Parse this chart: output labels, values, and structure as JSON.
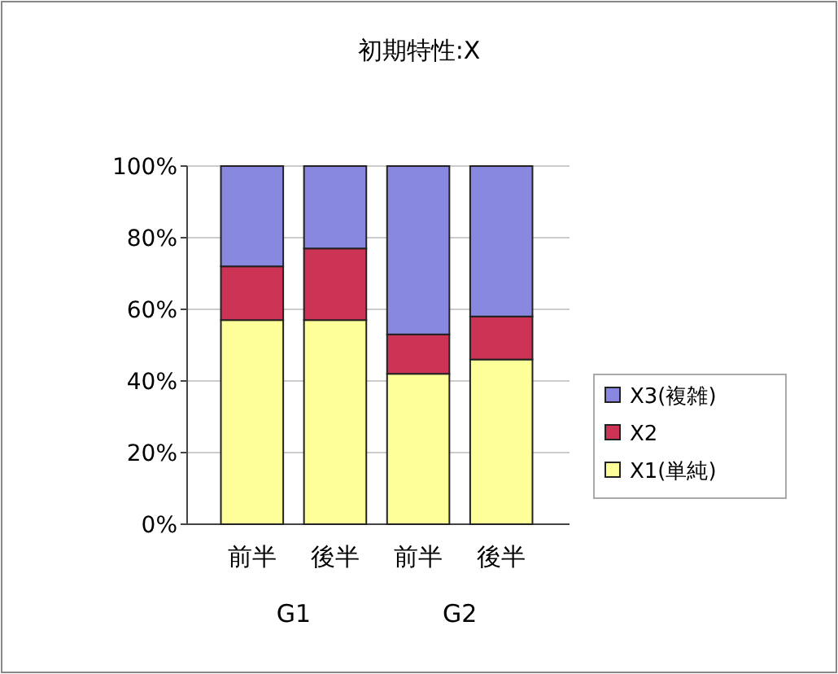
{
  "chart_data": {
    "type": "bar",
    "title": "初期特性:X",
    "stacked": true,
    "categories": [
      "前半",
      "後半",
      "前半",
      "後半"
    ],
    "series": [
      {
        "name": "X1(単純)",
        "color": "#ffff99",
        "values": [
          57,
          57,
          42,
          46
        ]
      },
      {
        "name": "X2",
        "color": "#cc3355",
        "values": [
          15,
          20,
          11,
          12
        ]
      },
      {
        "name": "X3(複雑)",
        "color": "#8888e0",
        "values": [
          28,
          23,
          47,
          42
        ]
      }
    ],
    "ylim": [
      0,
      100
    ],
    "yticks": [
      {
        "value": 0,
        "label": "0%"
      },
      {
        "value": 20,
        "label": "20%"
      },
      {
        "value": 40,
        "label": "40%"
      },
      {
        "value": 60,
        "label": "60%"
      },
      {
        "value": 80,
        "label": "80%"
      },
      {
        "value": 100,
        "label": "100%"
      }
    ],
    "grid": "y",
    "legend": "right",
    "annotations": [
      "G1",
      "G2"
    ]
  }
}
